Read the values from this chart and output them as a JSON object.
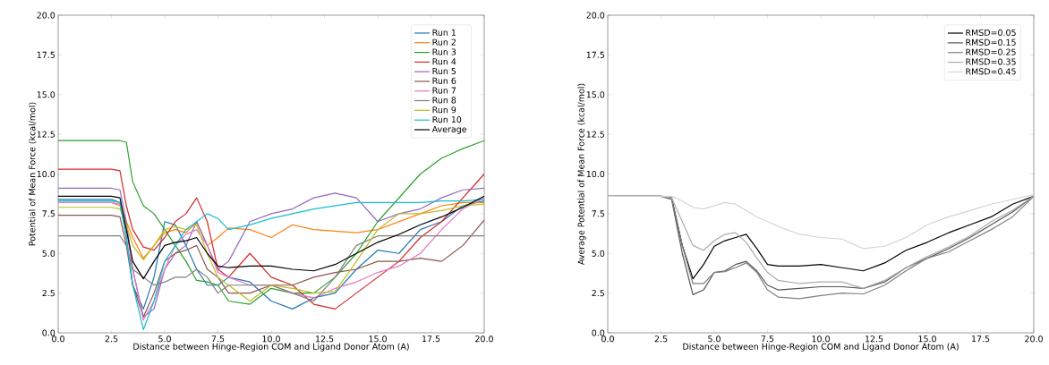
{
  "chart_data": [
    {
      "type": "line",
      "xlabel": "Distance between Hinge-Region COM and Ligand Donor Atom (A)",
      "ylabel": "Potential of Mean Force (kcal/mol)",
      "legend": "top right",
      "line_style": "solid",
      "xlim": [
        0,
        20
      ],
      "ylim": [
        0,
        20
      ],
      "xticks": [
        {
          "value": 0,
          "label": "0.0"
        },
        {
          "value": 2.5,
          "label": "2.5"
        },
        {
          "value": 5,
          "label": "5.0"
        },
        {
          "value": 7.5,
          "label": "7.5"
        },
        {
          "value": 10,
          "label": "10.0"
        },
        {
          "value": 12.5,
          "label": "12.5"
        },
        {
          "value": 15,
          "label": "15.0"
        },
        {
          "value": 17.5,
          "label": "17.5"
        },
        {
          "value": 20,
          "label": "20.0"
        }
      ],
      "yticks": [
        {
          "value": 0,
          "label": "0.0"
        },
        {
          "value": 2.5,
          "label": "2.5"
        },
        {
          "value": 5,
          "label": "5.0"
        },
        {
          "value": 7.5,
          "label": "7.5"
        },
        {
          "value": 10,
          "label": "10.0"
        },
        {
          "value": 12.5,
          "label": "12.5"
        },
        {
          "value": 15,
          "label": "15.0"
        },
        {
          "value": 17.5,
          "label": "17.5"
        },
        {
          "value": 20,
          "label": "20.0"
        }
      ],
      "x": [
        0,
        2.5,
        2.9,
        3.2,
        3.5,
        4,
        4.5,
        5,
        5.5,
        6,
        6.5,
        7,
        7.5,
        8,
        9,
        10,
        11,
        12,
        13,
        14,
        15,
        16,
        17,
        18,
        19,
        20
      ],
      "series": [
        {
          "name": "Run 1",
          "color": "#1f77b4",
          "values": [
            8.4,
            8.4,
            8.2,
            6,
            3,
            1.5,
            3.5,
            7,
            6.8,
            5.5,
            4,
            3,
            3,
            3.5,
            3.2,
            2.0,
            1.5,
            2.2,
            2.5,
            4,
            5.2,
            5,
            6.5,
            7,
            8,
            8.3
          ]
        },
        {
          "name": "Run 2",
          "color": "#ff7f0e",
          "values": [
            8.2,
            8.2,
            8.0,
            7.0,
            6,
            4.7,
            5.5,
            6.3,
            6.5,
            6.3,
            7,
            5.5,
            6.0,
            6.6,
            6.5,
            6.0,
            6.8,
            6.5,
            6.4,
            6.3,
            6.5,
            7.0,
            7.5,
            8,
            8.2,
            8.2
          ]
        },
        {
          "name": "Run 3",
          "color": "#2ca02c",
          "values": [
            12.1,
            12.1,
            12.1,
            12.0,
            9.5,
            8,
            7.5,
            6.5,
            5.5,
            4.5,
            3.3,
            3.2,
            3.0,
            2.0,
            1.8,
            2.8,
            2.5,
            2.5,
            3.5,
            5,
            7,
            8.5,
            10,
            11,
            11.6,
            12.1
          ]
        },
        {
          "name": "Run 4",
          "color": "#d62728",
          "values": [
            10.3,
            10.3,
            10.2,
            8,
            6.5,
            5.4,
            5.2,
            6.0,
            7,
            7.5,
            8.5,
            7.0,
            4.0,
            3.5,
            5.0,
            3.5,
            3.0,
            1.8,
            1.5,
            2.5,
            3.5,
            4.5,
            6,
            7,
            8.5,
            10
          ]
        },
        {
          "name": "Run 5",
          "color": "#9467bd",
          "values": [
            9.1,
            9.1,
            9.0,
            7,
            4,
            1.0,
            1.5,
            4,
            5,
            5.5,
            7,
            5.5,
            4,
            4.5,
            7,
            7.5,
            7.8,
            8.5,
            8.8,
            8.5,
            7,
            7.5,
            7.8,
            8.5,
            9,
            9.1
          ]
        },
        {
          "name": "Run 6",
          "color": "#8c564b",
          "values": [
            7.4,
            7.4,
            7.3,
            5.5,
            3,
            1.0,
            2.5,
            4.5,
            5.0,
            5.2,
            5.5,
            4,
            3.5,
            2.5,
            2.5,
            3.0,
            3.0,
            3.5,
            3.8,
            4.0,
            4.5,
            4.5,
            4.7,
            4.5,
            5.5,
            7.1
          ]
        },
        {
          "name": "Run 7",
          "color": "#e377c2",
          "values": [
            8.2,
            8.2,
            8.1,
            6.5,
            4,
            0.8,
            2,
            4,
            5.5,
            6.2,
            6.5,
            5.5,
            3.8,
            3.5,
            3.0,
            3.0,
            2.5,
            2.2,
            2.8,
            3.2,
            3.8,
            4.2,
            5,
            6.5,
            7.8,
            8.5
          ]
        },
        {
          "name": "Run 8",
          "color": "#7f7f7f",
          "values": [
            6.1,
            6.1,
            6.1,
            5.5,
            4,
            3.5,
            3.0,
            3.2,
            3.5,
            3.5,
            4.0,
            3.5,
            2.5,
            3.0,
            3.0,
            3.0,
            2.5,
            2.0,
            3.5,
            5.5,
            6.1,
            6.1,
            6.1,
            6.1,
            6.1,
            6.1
          ]
        },
        {
          "name": "Run 9",
          "color": "#bcbd22",
          "values": [
            7.9,
            7.9,
            7.8,
            6.8,
            5.5,
            4.6,
            5.5,
            6.5,
            6.7,
            6.5,
            6.8,
            5,
            3.5,
            3.0,
            2.0,
            3.0,
            2.8,
            2.5,
            2.6,
            4.5,
            6.5,
            7.5,
            7.5,
            7.7,
            8,
            8.1
          ]
        },
        {
          "name": "Run 10",
          "color": "#17becf",
          "values": [
            8.3,
            8.3,
            8.2,
            6,
            3,
            0.2,
            2,
            4.5,
            5.5,
            6.5,
            7,
            7.5,
            7.2,
            6.5,
            6.8,
            7.2,
            7.5,
            7.8,
            8.0,
            8.2,
            8.2,
            8.2,
            8.2,
            8.3,
            8.3,
            8.4
          ]
        },
        {
          "name": "Average",
          "color": "#000000",
          "values": [
            8.6,
            8.6,
            8.5,
            6.5,
            4.5,
            3.4,
            4.5,
            5.5,
            5.7,
            5.8,
            6.0,
            5.0,
            4.2,
            4.1,
            4.2,
            4.2,
            4.0,
            3.9,
            4.3,
            5.0,
            5.7,
            6.2,
            6.8,
            7.3,
            7.9,
            8.6
          ]
        }
      ]
    },
    {
      "type": "line",
      "xlabel": "Distance between Hinge-Region COM and Ligand Donor Atom (A)",
      "ylabel": "Average Potential of Mean Force (kcal/mol)",
      "legend": "top right",
      "line_style": "solid",
      "xlim": [
        0,
        20
      ],
      "ylim": [
        0,
        20
      ],
      "xticks": [
        {
          "value": 0,
          "label": "0.0"
        },
        {
          "value": 2.5,
          "label": "2.5"
        },
        {
          "value": 5,
          "label": "5.0"
        },
        {
          "value": 7.5,
          "label": "7.5"
        },
        {
          "value": 10,
          "label": "10.0"
        },
        {
          "value": 12.5,
          "label": "12.5"
        },
        {
          "value": 15,
          "label": "15.0"
        },
        {
          "value": 17.5,
          "label": "17.5"
        },
        {
          "value": 20,
          "label": "20.0"
        }
      ],
      "yticks": [
        {
          "value": 0,
          "label": "0.0"
        },
        {
          "value": 2.5,
          "label": "2.5"
        },
        {
          "value": 5,
          "label": "5.0"
        },
        {
          "value": 7.5,
          "label": "7.5"
        },
        {
          "value": 10,
          "label": "10.0"
        },
        {
          "value": 12.5,
          "label": "12.5"
        },
        {
          "value": 15,
          "label": "15.0"
        },
        {
          "value": 17.5,
          "label": "17.5"
        },
        {
          "value": 20,
          "label": "20.0"
        }
      ],
      "x": [
        0,
        2.5,
        3,
        3.5,
        4,
        4.5,
        5,
        5.5,
        6,
        6.5,
        7,
        7.5,
        8,
        9,
        10,
        11,
        12,
        13,
        14,
        15,
        16,
        17,
        18,
        19,
        20
      ],
      "series": [
        {
          "name": "RMSD=0.05",
          "color": "#000000",
          "values": [
            8.6,
            8.6,
            8.5,
            5.5,
            3.4,
            4.3,
            5.45,
            5.8,
            6.0,
            6.2,
            5.3,
            4.3,
            4.2,
            4.2,
            4.3,
            4.1,
            3.9,
            4.4,
            5.2,
            5.7,
            6.3,
            6.8,
            7.3,
            8.1,
            8.6
          ]
        },
        {
          "name": "RMSD=0.15",
          "color": "#555555",
          "values": [
            8.6,
            8.6,
            8.4,
            5,
            2.4,
            2.7,
            3.8,
            3.9,
            4.3,
            4.5,
            3.9,
            3.0,
            2.7,
            2.8,
            2.9,
            2.9,
            2.8,
            3.2,
            4.1,
            4.7,
            5.3,
            6.0,
            6.8,
            7.6,
            8.6
          ]
        },
        {
          "name": "RMSD=0.25",
          "color": "#808080",
          "values": [
            8.6,
            8.6,
            8.4,
            5.5,
            3.1,
            3.1,
            3.8,
            3.85,
            4.1,
            4.4,
            3.8,
            2.7,
            2.25,
            2.15,
            2.35,
            2.5,
            2.45,
            3.0,
            3.9,
            4.7,
            5.1,
            5.8,
            6.5,
            7.3,
            8.6
          ]
        },
        {
          "name": "RMSD=0.35",
          "color": "#aaaaaa",
          "values": [
            8.6,
            8.6,
            8.5,
            7,
            5.5,
            5.2,
            5.8,
            6.2,
            6.3,
            5.7,
            4.7,
            3.8,
            3.3,
            3.1,
            3.2,
            3.2,
            2.8,
            3.3,
            4.1,
            4.8,
            5.4,
            6.1,
            7.0,
            7.7,
            8.6
          ]
        },
        {
          "name": "RMSD=0.45",
          "color": "#d4d4d4",
          "values": [
            8.6,
            8.6,
            8.6,
            8.3,
            7.9,
            7.8,
            8.0,
            8.2,
            8.1,
            7.7,
            7.3,
            7.0,
            6.7,
            6.2,
            6.0,
            5.9,
            5.3,
            5.45,
            6.0,
            6.8,
            7.3,
            7.7,
            8.1,
            8.4,
            8.7
          ]
        }
      ]
    }
  ]
}
